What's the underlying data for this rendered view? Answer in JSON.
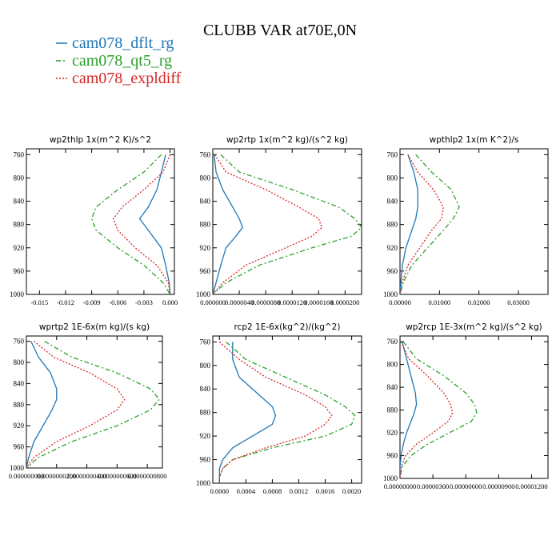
{
  "title": "CLUBB VAR at70E,0N",
  "legend": [
    {
      "name": "cam078_dflt_rg",
      "color": "#1f77b4",
      "dash": "solid"
    },
    {
      "name": "cam078_qt5_rg",
      "color": "#2ca02c",
      "dash": "dashdot"
    },
    {
      "name": "cam078_expldiff",
      "color": "#d62728",
      "dash": "dotted"
    }
  ],
  "chart_data": [
    {
      "type": "line",
      "title": "wp2thlp   1x(m^2 K)/s^2",
      "xlim": [
        -0.0165,
        0.0005
      ],
      "ylim": [
        1000,
        750
      ],
      "xticks": [
        -0.015,
        -0.012,
        -0.009,
        -0.006,
        -0.003,
        0.0
      ],
      "xtick_labels": [
        "-0.015",
        "-0.012",
        "-0.009",
        "-0.006",
        "-0.003",
        "0.000"
      ],
      "yticks": [
        760,
        800,
        840,
        880,
        920,
        960,
        1000
      ],
      "y": [
        760,
        790,
        820,
        850,
        870,
        890,
        920,
        950,
        980,
        1000
      ],
      "series": [
        {
          "name": "cam078_dflt_rg",
          "values": [
            -0.0005,
            -0.001,
            -0.0015,
            -0.0025,
            -0.0035,
            -0.0025,
            -0.001,
            -0.0005,
            -0.0001,
            0.0
          ]
        },
        {
          "name": "cam078_qt5_rg",
          "values": [
            -0.001,
            -0.003,
            -0.006,
            -0.0085,
            -0.009,
            -0.0085,
            -0.006,
            -0.003,
            -0.0008,
            0.0
          ]
        },
        {
          "name": "cam078_expldiff",
          "values": [
            0.0,
            -0.0008,
            -0.003,
            -0.0055,
            -0.0065,
            -0.006,
            -0.004,
            -0.0015,
            -0.0002,
            0.0
          ]
        }
      ]
    },
    {
      "type": "line",
      "title": "wp2rtp   1x(m^2 kg)/(s^2 kg)",
      "xlim": [
        0.0,
        2.25e-05
      ],
      "ylim": [
        1000,
        750
      ],
      "xticks": [
        0.0,
        4e-06,
        8e-06,
        1.2e-05,
        1.6e-05,
        2e-05
      ],
      "xtick_labels": [
        "0.000000",
        "0.0000040",
        "0.0000080",
        "0.0000120",
        "0.0000160",
        "0.0000200"
      ],
      "yticks": [
        760,
        800,
        840,
        880,
        920,
        960,
        1000
      ],
      "y": [
        760,
        790,
        820,
        850,
        870,
        885,
        900,
        920,
        950,
        980,
        1000
      ],
      "series": [
        {
          "name": "cam078_dflt_rg",
          "values": [
            2e-07,
            5e-07,
            1.5e-06,
            3e-06,
            4e-06,
            4.5e-06,
            3.5e-06,
            2e-06,
            1.2e-06,
            5e-07,
            0.0
          ]
        },
        {
          "name": "cam078_qt5_rg",
          "values": [
            1.2e-06,
            4e-06,
            1.2e-05,
            1.9e-05,
            2.15e-05,
            2.25e-05,
            2.1e-05,
            1.5e-05,
            7e-06,
            2e-06,
            0.0
          ]
        },
        {
          "name": "cam078_expldiff",
          "values": [
            3e-07,
            2e-06,
            8e-06,
            1.3e-05,
            1.6e-05,
            1.65e-05,
            1.5e-05,
            1.1e-05,
            5e-06,
            1.5e-06,
            0.0
          ]
        }
      ]
    },
    {
      "type": "line",
      "title": "wpthlp2   1x(m K^2)/s",
      "xlim": [
        0.0,
        0.0375
      ],
      "ylim": [
        1000,
        750
      ],
      "xticks": [
        0.0,
        0.01,
        0.02,
        0.03
      ],
      "xtick_labels": [
        "0.00000",
        "0.01000",
        "0.02000",
        "0.03000"
      ],
      "yticks": [
        760,
        800,
        840,
        880,
        920,
        960,
        1000
      ],
      "y": [
        760,
        790,
        820,
        850,
        870,
        890,
        920,
        950,
        980,
        1000
      ],
      "series": [
        {
          "name": "cam078_dflt_rg",
          "values": [
            0.002,
            0.0035,
            0.0045,
            0.0045,
            0.004,
            0.003,
            0.0015,
            0.0006,
            0.0002,
            0.0
          ]
        },
        {
          "name": "cam078_qt5_rg",
          "values": [
            0.004,
            0.008,
            0.013,
            0.015,
            0.0135,
            0.011,
            0.007,
            0.003,
            0.0008,
            0.0
          ]
        },
        {
          "name": "cam078_expldiff",
          "values": [
            0.002,
            0.0045,
            0.0085,
            0.011,
            0.0105,
            0.008,
            0.005,
            0.002,
            0.0005,
            0.0
          ]
        }
      ]
    },
    {
      "type": "line",
      "title": "wprtp2   1E-6x(m kg)/(s kg)",
      "xlim": [
        0.0,
        9e-08
      ],
      "ylim": [
        1000,
        750
      ],
      "xticks": [
        0.0,
        2e-08,
        4e-08,
        6e-08,
        8e-08
      ],
      "xtick_labels": [
        "0.000000000",
        "0.0000000200",
        "0.0000000400",
        "0.0000000600",
        "0.0000000800"
      ],
      "yticks": [
        760,
        800,
        840,
        880,
        920,
        960,
        1000
      ],
      "y": [
        760,
        790,
        820,
        850,
        870,
        890,
        920,
        950,
        980,
        1000
      ],
      "series": [
        {
          "name": "cam078_dflt_rg",
          "values": [
            3e-09,
            8e-09,
            1.6e-08,
            2e-08,
            2e-08,
            1.7e-08,
            1.1e-08,
            5e-09,
            1.5e-09,
            0.0
          ]
        },
        {
          "name": "cam078_qt5_rg",
          "values": [
            1.2e-08,
            3e-08,
            6e-08,
            8.2e-08,
            8.8e-08,
            8.2e-08,
            6e-08,
            3e-08,
            8e-09,
            0.0
          ]
        },
        {
          "name": "cam078_expldiff",
          "values": [
            5e-09,
            1.8e-08,
            4.2e-08,
            6e-08,
            6.5e-08,
            6e-08,
            4.2e-08,
            2e-08,
            5e-09,
            0.0
          ]
        }
      ]
    },
    {
      "type": "line",
      "title": "rcp2   1E-6x(kg^2)/(kg^2)",
      "xlim": [
        -0.0001,
        0.00215
      ],
      "ylim": [
        1000,
        750
      ],
      "xticks": [
        0.0,
        0.0004,
        0.0008,
        0.0012,
        0.0016,
        0.002
      ],
      "xtick_labels": [
        "0.0000",
        "0.0004",
        "0.0008",
        "0.0012",
        "0.0016",
        "0.0020"
      ],
      "yticks": [
        760,
        800,
        840,
        880,
        920,
        960,
        1000
      ],
      "y": [
        760,
        790,
        820,
        850,
        870,
        885,
        900,
        920,
        940,
        960,
        975,
        990,
        1000
      ],
      "series": [
        {
          "name": "cam078_dflt_rg",
          "values": [
            0.0002,
            0.0002,
            0.0003,
            0.0006,
            0.0008,
            0.00085,
            0.0008,
            0.0005,
            0.0002,
            5e-05,
            0.0,
            0.0,
            0.0
          ]
        },
        {
          "name": "cam078_qt5_rg",
          "values": [
            0.0001,
            0.0004,
            0.001,
            0.0016,
            0.0019,
            0.00205,
            0.002,
            0.0016,
            0.0008,
            0.0002,
            5e-05,
            0.0,
            0.0
          ]
        },
        {
          "name": "cam078_expldiff",
          "values": [
            0.0,
            0.0003,
            0.0007,
            0.0013,
            0.0016,
            0.0017,
            0.0016,
            0.0013,
            0.0007,
            0.0002,
            5e-05,
            0.0,
            0.0
          ]
        }
      ]
    },
    {
      "type": "line",
      "title": "wp2rcp   1E-3x(m^2 kg)/(s^2 kg)",
      "xlim": [
        0.0,
        1.35e-05
      ],
      "ylim": [
        1000,
        750
      ],
      "xticks": [
        0.0,
        3e-06,
        6e-06,
        9e-06,
        1.2e-05
      ],
      "xtick_labels": [
        "0.00000000",
        "0.00000300",
        "0.00000600",
        "0.00000900",
        "0.00001200"
      ],
      "yticks": [
        760,
        800,
        840,
        880,
        920,
        960,
        1000
      ],
      "y": [
        760,
        790,
        820,
        850,
        870,
        885,
        900,
        920,
        940,
        960,
        980,
        1000
      ],
      "series": [
        {
          "name": "cam078_dflt_rg",
          "values": [
            2e-07,
            6e-07,
            1e-06,
            1.4e-06,
            1.5e-06,
            1.3e-06,
            1e-06,
            6e-07,
            3e-07,
            1e-07,
            0.0,
            0.0
          ]
        },
        {
          "name": "cam078_qt5_rg",
          "values": [
            3e-07,
            1.5e-06,
            4e-06,
            6e-06,
            6.8e-06,
            7e-06,
            6.5e-06,
            4.5e-06,
            2.5e-06,
            1e-06,
            2e-07,
            0.0
          ]
        },
        {
          "name": "cam078_expldiff",
          "values": [
            1e-07,
            8e-07,
            2.5e-06,
            4e-06,
            4.6e-06,
            4.8e-06,
            4.4e-06,
            3e-06,
            1.5e-06,
            5e-07,
            1e-07,
            0.0
          ]
        }
      ]
    }
  ]
}
